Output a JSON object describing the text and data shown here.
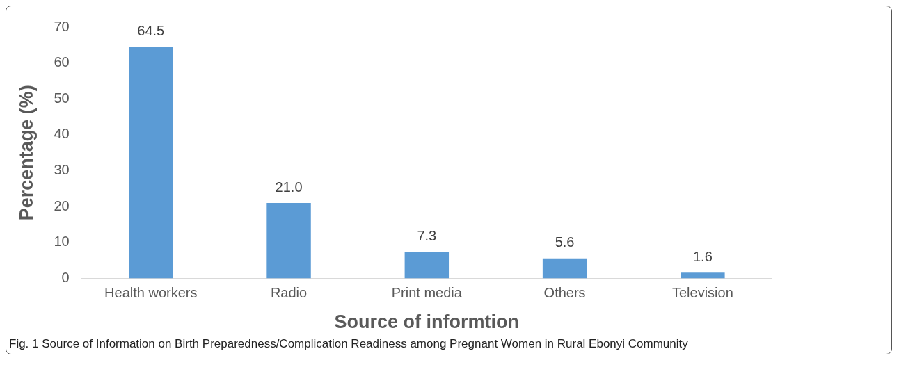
{
  "chart_data": {
    "type": "bar",
    "xlabel": "Source of informtion",
    "ylabel": "Percentage (%)",
    "categories": [
      "Health workers",
      "Radio",
      "Print media",
      "Others",
      "Television"
    ],
    "values": [
      64.5,
      21.0,
      7.3,
      5.6,
      1.6
    ],
    "value_labels": [
      "64.5",
      "21.0",
      "7.3",
      "5.6",
      "1.6"
    ],
    "color": "#5b9bd5",
    "ylim": [
      0,
      70
    ],
    "yticks": [
      0,
      10,
      20,
      30,
      40,
      50,
      60,
      70
    ],
    "grid": false,
    "legend": false,
    "annotations": [
      "Fig. 1 Source of Information on Birth Preparedness/Complication Readiness among Pregnant Women in Rural Ebonyi Community"
    ]
  }
}
